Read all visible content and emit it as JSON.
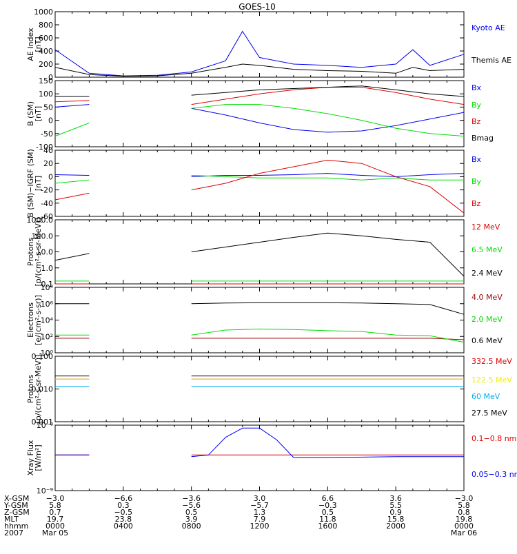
{
  "title": "GOES-10",
  "colors": {
    "black": "#000000",
    "blue": "#0000ee",
    "red": "#dd0000",
    "green": "#00dd00",
    "darkred": "#990000",
    "yellow": "#eeee00",
    "cyan": "#00aaee"
  },
  "chart_data": [
    {
      "type": "line",
      "id": "ae",
      "ylabel": [
        "AE Index",
        "[nT]"
      ],
      "ylim": [
        0,
        1000
      ],
      "yticks": [
        "0",
        "200",
        "400",
        "600",
        "800",
        "1000"
      ],
      "ytick_values": [
        0,
        200,
        400,
        600,
        800,
        1000
      ],
      "x": [
        0,
        2,
        4,
        6,
        8,
        10,
        11,
        12,
        14,
        16,
        18,
        20,
        21,
        22,
        24
      ],
      "series": [
        {
          "name": "Kyoto AE",
          "color": "blue",
          "values": [
            420,
            60,
            20,
            30,
            80,
            250,
            700,
            300,
            200,
            180,
            150,
            200,
            420,
            180,
            350
          ]
        },
        {
          "name": "Themis AE",
          "color": "black",
          "values": [
            150,
            40,
            15,
            20,
            60,
            150,
            200,
            180,
            120,
            100,
            90,
            60,
            150,
            100,
            120
          ]
        }
      ]
    },
    {
      "type": "line",
      "id": "b_sm",
      "ylabel": [
        "B (SM)",
        "[nT]"
      ],
      "ylim": [
        -100,
        150
      ],
      "yticks": [
        "-100",
        "-50",
        "0",
        "50",
        "100",
        "150"
      ],
      "ytick_values": [
        -100,
        -50,
        0,
        50,
        100,
        150
      ],
      "x": [
        0,
        2,
        6,
        8,
        10,
        12,
        14,
        16,
        18,
        20,
        22,
        24
      ],
      "series": [
        {
          "name": "Bx",
          "color": "blue",
          "values": [
            50,
            60,
            null,
            45,
            20,
            -10,
            -35,
            -45,
            -40,
            -20,
            5,
            30
          ]
        },
        {
          "name": "By",
          "color": "green",
          "values": [
            -60,
            -10,
            null,
            45,
            60,
            60,
            45,
            25,
            0,
            -30,
            -50,
            -60
          ]
        },
        {
          "name": "Bz",
          "color": "red",
          "values": [
            70,
            75,
            null,
            60,
            80,
            100,
            115,
            125,
            125,
            105,
            80,
            60
          ]
        },
        {
          "name": "Bmag",
          "color": "black",
          "values": [
            90,
            90,
            null,
            95,
            105,
            115,
            120,
            125,
            130,
            115,
            100,
            90
          ]
        }
      ]
    },
    {
      "type": "line",
      "id": "b_igrf",
      "ylabel": [
        "B (SM)−IGRF (SM)",
        "[nT]"
      ],
      "ylim": [
        -60,
        40
      ],
      "yticks": [
        "-60",
        "-40",
        "-20",
        "0",
        "20",
        "40"
      ],
      "ytick_values": [
        -60,
        -40,
        -20,
        0,
        20,
        40
      ],
      "x": [
        0,
        2,
        6,
        8,
        10,
        12,
        14,
        16,
        18,
        20,
        22,
        24
      ],
      "series": [
        {
          "name": "Bx",
          "color": "blue",
          "values": [
            3,
            2,
            null,
            0,
            2,
            2,
            3,
            5,
            2,
            0,
            3,
            5
          ]
        },
        {
          "name": "By",
          "color": "green",
          "values": [
            -10,
            -5,
            null,
            2,
            0,
            -2,
            -2,
            -2,
            -5,
            -2,
            -5,
            -5
          ]
        },
        {
          "name": "Bz",
          "color": "red",
          "values": [
            -35,
            -25,
            null,
            -20,
            -10,
            5,
            15,
            25,
            20,
            0,
            -15,
            -55
          ]
        }
      ]
    },
    {
      "type": "line",
      "id": "protons_low",
      "ylabel": [
        "Protons",
        "[p/(cm²-s-sr-MeV)]"
      ],
      "yscale": "log",
      "ylim": [
        0.1,
        1000
      ],
      "yticks": [
        "0.1",
        "1.0",
        "10.0",
        "100.0",
        "1000.0"
      ],
      "ytick_values": [
        0.1,
        1,
        10,
        100,
        1000
      ],
      "x": [
        0,
        2,
        6,
        8,
        10,
        12,
        14,
        16,
        18,
        20,
        22,
        24
      ],
      "series": [
        {
          "name": "12 MeV",
          "color": "red",
          "values": [
            0.1,
            0.1,
            null,
            0.1,
            0.1,
            0.1,
            0.1,
            0.1,
            0.1,
            0.1,
            0.1,
            0.1
          ]
        },
        {
          "name": "6.5 MeV",
          "color": "green",
          "values": [
            0.15,
            0.15,
            null,
            0.15,
            0.15,
            0.15,
            0.15,
            0.15,
            0.15,
            0.15,
            0.15,
            0.15
          ]
        },
        {
          "name": "2.4 MeV",
          "color": "black",
          "values": [
            3,
            8,
            null,
            10,
            20,
            40,
            80,
            150,
            100,
            60,
            40,
            0.3
          ]
        }
      ]
    },
    {
      "type": "line",
      "id": "electrons",
      "ylabel": [
        "Electrons",
        "[e/(cm²-s-sr)]"
      ],
      "yscale": "log",
      "ylim": [
        1,
        100000000
      ],
      "yticks": [
        "10⁰",
        "10²",
        "10⁴",
        "10⁶",
        "10⁸"
      ],
      "ytick_values": [
        1,
        100,
        10000,
        1000000,
        100000000
      ],
      "x": [
        0,
        2,
        6,
        8,
        10,
        12,
        14,
        16,
        18,
        20,
        22,
        24
      ],
      "series": [
        {
          "name": "4.0 MeV",
          "color": "darkred",
          "values": [
            60,
            60,
            null,
            60,
            60,
            60,
            60,
            60,
            60,
            60,
            60,
            40
          ]
        },
        {
          "name": "2.0 MeV",
          "color": "green",
          "values": [
            150,
            150,
            null,
            150,
            600,
            800,
            700,
            500,
            400,
            150,
            120,
            20
          ]
        },
        {
          "name": "0.6 MeV",
          "color": "black",
          "values": [
            1000000,
            1000000,
            null,
            1000000,
            1200000,
            1300000,
            1300000,
            1300000,
            1200000,
            1000000,
            800000,
            50000
          ]
        }
      ]
    },
    {
      "type": "line",
      "id": "protons_high",
      "ylabel": [
        "Protons",
        "[p/(cm²-s-sr-MeV)]"
      ],
      "yscale": "log",
      "ylim": [
        0.001,
        0.1
      ],
      "yticks": [
        "0.001",
        "0.010",
        "0.100"
      ],
      "ytick_values": [
        0.001,
        0.01,
        0.1
      ],
      "x": [
        0,
        2,
        6,
        8,
        10,
        12,
        14,
        16,
        18,
        20,
        22,
        24
      ],
      "series": [
        {
          "name": "332.5 MeV",
          "color": "red",
          "values": [
            0.02,
            0.02,
            null,
            0.02,
            0.02,
            0.02,
            0.02,
            0.02,
            0.02,
            0.02,
            0.02,
            0.02
          ]
        },
        {
          "name": "122.5 MeV",
          "color": "yellow",
          "values": [
            0.02,
            0.02,
            null,
            0.02,
            0.02,
            0.02,
            0.02,
            0.02,
            0.02,
            0.02,
            0.02,
            0.02
          ]
        },
        {
          "name": "60 MeV",
          "color": "cyan",
          "values": [
            0.012,
            0.012,
            null,
            0.012,
            0.012,
            0.012,
            0.012,
            0.012,
            0.012,
            0.012,
            0.012,
            0.012
          ]
        },
        {
          "name": "27.5 MeV",
          "color": "black",
          "values": [
            0.025,
            0.025,
            null,
            0.025,
            0.025,
            0.025,
            0.025,
            0.025,
            0.025,
            0.025,
            0.025,
            0.025
          ]
        }
      ]
    },
    {
      "type": "line",
      "id": "xray",
      "ylabel": [
        "Xray Flux",
        "[W/m²]"
      ],
      "yscale": "log",
      "ylim": [
        1e-09,
        1e-08
      ],
      "yticks": [
        "10⁻⁹",
        "10⁻⁸"
      ],
      "ytick_values": [
        1e-09,
        1e-08
      ],
      "x": [
        0,
        2,
        6,
        8,
        9,
        10,
        11,
        12,
        13,
        14,
        16,
        20,
        24
      ],
      "series": [
        {
          "name": "0.1−0.8 nm",
          "color": "red",
          "values": [
            3.5e-09,
            3.5e-09,
            null,
            3.5e-09,
            3.5e-09,
            3.5e-09,
            3.5e-09,
            3.5e-09,
            3.5e-09,
            3.5e-09,
            3.5e-09,
            3.5e-09,
            3.5e-09
          ]
        },
        {
          "name": "0.05−0.3 nm",
          "color": "blue",
          "values": [
            3.5e-09,
            3.5e-09,
            null,
            3.3e-09,
            3.5e-09,
            6.5e-09,
            9e-09,
            9e-09,
            6e-09,
            3.2e-09,
            3.2e-09,
            3.3e-09,
            3.3e-09
          ]
        }
      ]
    }
  ],
  "orbit_table": {
    "row_labels": [
      "X-GSM",
      "Y-GSM",
      "Z-GSM",
      "MLT",
      "hhmm",
      "2007"
    ],
    "columns": [
      [
        "−3.0",
        "5.8",
        "0.7",
        "19.7",
        "0000",
        "Mar 05"
      ],
      [
        "−6.6",
        "0.3",
        "−0.5",
        "23.8",
        "0400",
        ""
      ],
      [
        "−3.6",
        "−5.6",
        "0.5",
        "3.9",
        "0800",
        ""
      ],
      [
        "3.0",
        "−5.7",
        "1.3",
        "7.9",
        "1200",
        ""
      ],
      [
        "6.6",
        "−0.3",
        "0.5",
        "11.8",
        "1600",
        ""
      ],
      [
        "3.6",
        "5.5",
        "0.9",
        "15.8",
        "2000",
        ""
      ],
      [
        "−3.0",
        "5.8",
        "0.8",
        "19.8",
        "0000",
        "Mar 06"
      ]
    ]
  }
}
